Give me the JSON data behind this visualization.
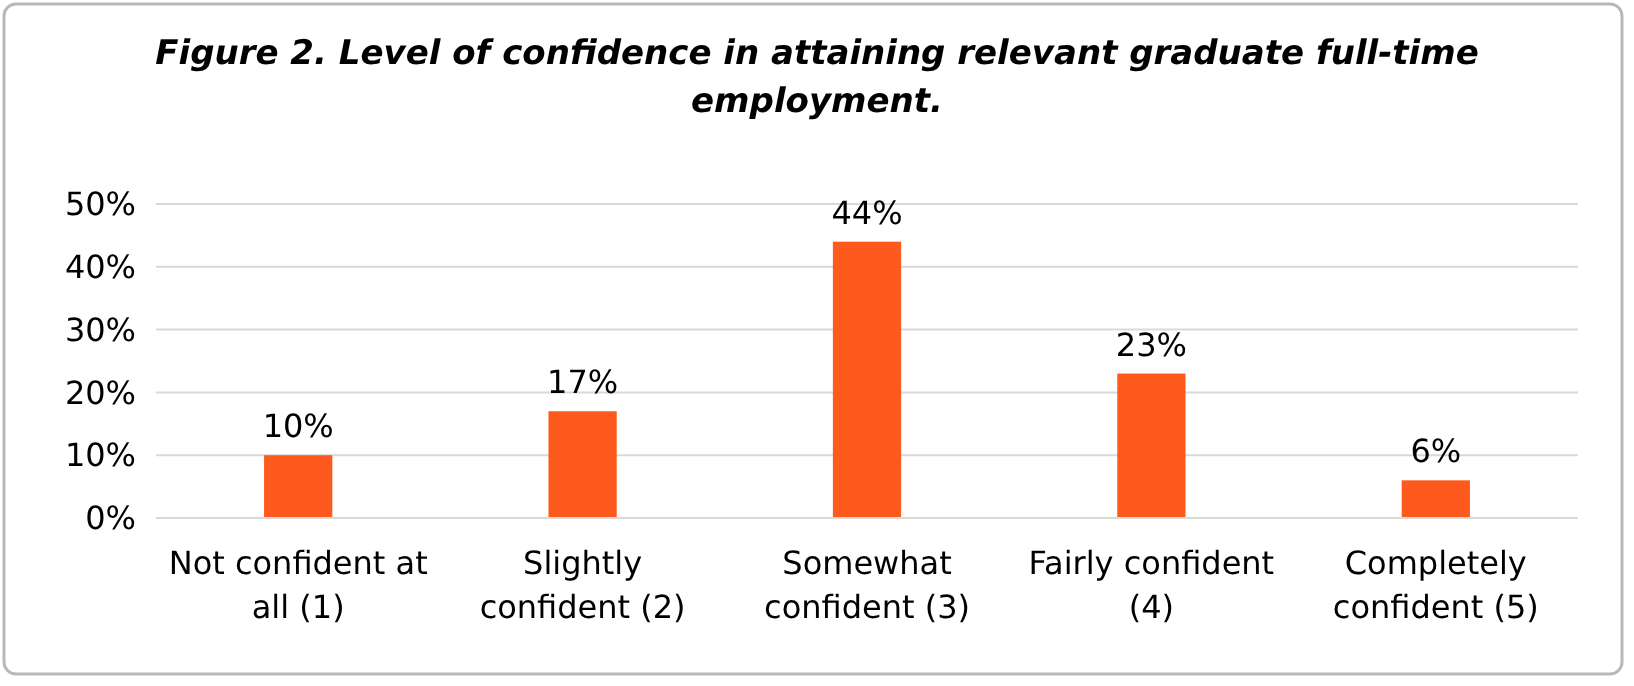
{
  "chart_data": {
    "type": "bar",
    "title": "Figure 2. Level of confidence in attaining relevant graduate full-time employment.",
    "categories": [
      "Not confident at all (1)",
      "Slightly confident (2)",
      "Somewhat confident (3)",
      "Fairly confident (4)",
      "Completely confident (5)"
    ],
    "values": [
      10,
      17,
      44,
      23,
      6
    ],
    "value_labels": [
      "10%",
      "17%",
      "44%",
      "23%",
      "6%"
    ],
    "color": "#fe5a1d",
    "ylim": [
      0,
      50
    ],
    "yticks": [
      {
        "value": 0,
        "label": "0%"
      },
      {
        "value": 10,
        "label": "10%"
      },
      {
        "value": 20,
        "label": "20%"
      },
      {
        "value": 30,
        "label": "30%"
      },
      {
        "value": 40,
        "label": "40%"
      },
      {
        "value": 50,
        "label": "50%"
      }
    ],
    "grid": "y"
  }
}
